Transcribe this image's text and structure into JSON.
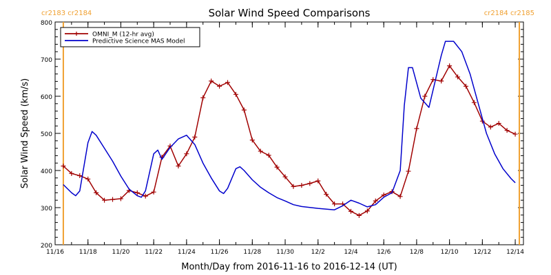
{
  "chart_data": {
    "type": "line",
    "title": "Solar Wind Speed Comparisons",
    "xlabel": "Month/Day from 2016-11-16 to 2016-12-14 (UT)",
    "ylabel": "Solar Wind Speed (km/s)",
    "xlim": [
      "2016-11-16",
      "2016-12-14 12:00"
    ],
    "ylim": [
      200,
      800
    ],
    "y_ticks": [
      200,
      300,
      400,
      500,
      600,
      700,
      800
    ],
    "x_ticks": [
      {
        "date": "2016-11-16",
        "label": "11/16"
      },
      {
        "date": "2016-11-18",
        "label": "11/18"
      },
      {
        "date": "2016-11-20",
        "label": "11/20"
      },
      {
        "date": "2016-11-22",
        "label": "11/22"
      },
      {
        "date": "2016-11-24",
        "label": "11/24"
      },
      {
        "date": "2016-11-26",
        "label": "11/26"
      },
      {
        "date": "2016-11-28",
        "label": "11/28"
      },
      {
        "date": "2016-11-30",
        "label": "11/30"
      },
      {
        "date": "2016-12-02",
        "label": "12/2"
      },
      {
        "date": "2016-12-04",
        "label": "12/4"
      },
      {
        "date": "2016-12-06",
        "label": "12/6"
      },
      {
        "date": "2016-12-08",
        "label": "12/8"
      },
      {
        "date": "2016-12-10",
        "label": "12/10"
      },
      {
        "date": "2016-12-12",
        "label": "12/12"
      },
      {
        "date": "2016-12-14",
        "label": "12/14"
      }
    ],
    "legend": {
      "placement": "top-left"
    },
    "carrington_markers": [
      {
        "date": "2016-11-16 12:00",
        "label": "cr2183 cr2184",
        "color": "#f0a030",
        "label_side": "left"
      },
      {
        "date": "2016-12-14 06:00",
        "label": "cr2184 cr2185",
        "color": "#f0a030",
        "label_side": "right"
      }
    ],
    "series": [
      {
        "name": "OMNI_M (12-hr avg)",
        "color": "#a00000",
        "marker": "plus",
        "points": [
          [
            "2016-11-16 12:00",
            412
          ],
          [
            "2016-11-17 00:00",
            392
          ],
          [
            "2016-11-17 12:00",
            386
          ],
          [
            "2016-11-18 00:00",
            377
          ],
          [
            "2016-11-18 12:00",
            340
          ],
          [
            "2016-11-19 00:00",
            320
          ],
          [
            "2016-11-19 12:00",
            322
          ],
          [
            "2016-11-20 00:00",
            324
          ],
          [
            "2016-11-20 12:00",
            346
          ],
          [
            "2016-11-21 00:00",
            340
          ],
          [
            "2016-11-21 12:00",
            331
          ],
          [
            "2016-11-22 00:00",
            342
          ],
          [
            "2016-11-22 12:00",
            436
          ],
          [
            "2016-11-23 00:00",
            466
          ],
          [
            "2016-11-23 12:00",
            412
          ],
          [
            "2016-11-24 00:00",
            445
          ],
          [
            "2016-11-24 12:00",
            490
          ],
          [
            "2016-11-25 00:00",
            596
          ],
          [
            "2016-11-25 12:00",
            641
          ],
          [
            "2016-11-26 00:00",
            627
          ],
          [
            "2016-11-26 12:00",
            637
          ],
          [
            "2016-11-27 00:00",
            605
          ],
          [
            "2016-11-27 12:00",
            563
          ],
          [
            "2016-11-28 00:00",
            482
          ],
          [
            "2016-11-28 12:00",
            452
          ],
          [
            "2016-11-29 00:00",
            441
          ],
          [
            "2016-11-29 12:00",
            409
          ],
          [
            "2016-11-30 00:00",
            383
          ],
          [
            "2016-11-30 12:00",
            357
          ],
          [
            "2016-12-01 00:00",
            360
          ],
          [
            "2016-12-01 12:00",
            365
          ],
          [
            "2016-12-02 00:00",
            372
          ],
          [
            "2016-12-02 12:00",
            336
          ],
          [
            "2016-12-03 00:00",
            310
          ],
          [
            "2016-12-03 12:00",
            310
          ],
          [
            "2016-12-04 00:00",
            290
          ],
          [
            "2016-12-04 12:00",
            279
          ],
          [
            "2016-12-05 00:00",
            291
          ],
          [
            "2016-12-05 12:00",
            318
          ],
          [
            "2016-12-06 00:00",
            334
          ],
          [
            "2016-12-06 12:00",
            343
          ],
          [
            "2016-12-07 00:00",
            330
          ],
          [
            "2016-12-07 12:00",
            398
          ],
          [
            "2016-12-08 00:00",
            513
          ],
          [
            "2016-12-08 12:00",
            600
          ],
          [
            "2016-12-09 00:00",
            645
          ],
          [
            "2016-12-09 12:00",
            641
          ],
          [
            "2016-12-10 00:00",
            682
          ],
          [
            "2016-12-10 12:00",
            652
          ],
          [
            "2016-12-11 00:00",
            627
          ],
          [
            "2016-12-11 12:00",
            583
          ],
          [
            "2016-12-12 00:00",
            533
          ],
          [
            "2016-12-12 12:00",
            517
          ],
          [
            "2016-12-13 00:00",
            527
          ],
          [
            "2016-12-13 12:00",
            508
          ],
          [
            "2016-12-14 00:00",
            498
          ]
        ]
      },
      {
        "name": "Predictive Science MAS Model",
        "color": "#0000cc",
        "marker": "none",
        "points": [
          [
            "2016-11-16 12:00",
            362
          ],
          [
            "2016-11-17 00:00",
            340
          ],
          [
            "2016-11-17 06:00",
            332
          ],
          [
            "2016-11-17 12:00",
            345
          ],
          [
            "2016-11-18 00:00",
            475
          ],
          [
            "2016-11-18 06:00",
            505
          ],
          [
            "2016-11-18 12:00",
            495
          ],
          [
            "2016-11-19 00:00",
            460
          ],
          [
            "2016-11-19 12:00",
            425
          ],
          [
            "2016-11-20 00:00",
            385
          ],
          [
            "2016-11-20 12:00",
            350
          ],
          [
            "2016-11-21 00:00",
            332
          ],
          [
            "2016-11-21 06:00",
            328
          ],
          [
            "2016-11-21 12:00",
            345
          ],
          [
            "2016-11-22 00:00",
            445
          ],
          [
            "2016-11-22 06:00",
            455
          ],
          [
            "2016-11-22 12:00",
            430
          ],
          [
            "2016-11-23 00:00",
            462
          ],
          [
            "2016-11-23 12:00",
            485
          ],
          [
            "2016-11-24 00:00",
            495
          ],
          [
            "2016-11-24 12:00",
            470
          ],
          [
            "2016-11-25 00:00",
            420
          ],
          [
            "2016-11-25 12:00",
            380
          ],
          [
            "2016-11-26 00:00",
            345
          ],
          [
            "2016-11-26 06:00",
            338
          ],
          [
            "2016-11-26 12:00",
            352
          ],
          [
            "2016-11-27 00:00",
            405
          ],
          [
            "2016-11-27 06:00",
            410
          ],
          [
            "2016-11-27 12:00",
            400
          ],
          [
            "2016-11-28 00:00",
            375
          ],
          [
            "2016-11-28 12:00",
            355
          ],
          [
            "2016-11-29 00:00",
            340
          ],
          [
            "2016-11-29 12:00",
            327
          ],
          [
            "2016-11-30 00:00",
            318
          ],
          [
            "2016-11-30 12:00",
            308
          ],
          [
            "2016-12-01 00:00",
            303
          ],
          [
            "2016-12-02 00:00",
            298
          ],
          [
            "2016-12-03 00:00",
            294
          ],
          [
            "2016-12-03 12:00",
            305
          ],
          [
            "2016-12-04 00:00",
            320
          ],
          [
            "2016-12-04 12:00",
            312
          ],
          [
            "2016-12-05 00:00",
            302
          ],
          [
            "2016-12-05 12:00",
            308
          ],
          [
            "2016-12-06 00:00",
            328
          ],
          [
            "2016-12-06 12:00",
            340
          ],
          [
            "2016-12-07 00:00",
            400
          ],
          [
            "2016-12-07 06:00",
            575
          ],
          [
            "2016-12-07 12:00",
            677
          ],
          [
            "2016-12-07 18:00",
            677
          ],
          [
            "2016-12-08 06:00",
            595
          ],
          [
            "2016-12-08 18:00",
            570
          ],
          [
            "2016-12-09 12:00",
            710
          ],
          [
            "2016-12-09 18:00",
            748
          ],
          [
            "2016-12-10 06:00",
            748
          ],
          [
            "2016-12-10 18:00",
            720
          ],
          [
            "2016-12-11 06:00",
            660
          ],
          [
            "2016-12-11 18:00",
            580
          ],
          [
            "2016-12-12 06:00",
            500
          ],
          [
            "2016-12-12 18:00",
            445
          ],
          [
            "2016-12-13 06:00",
            405
          ],
          [
            "2016-12-13 18:00",
            378
          ],
          [
            "2016-12-14 00:00",
            367
          ]
        ]
      }
    ]
  }
}
